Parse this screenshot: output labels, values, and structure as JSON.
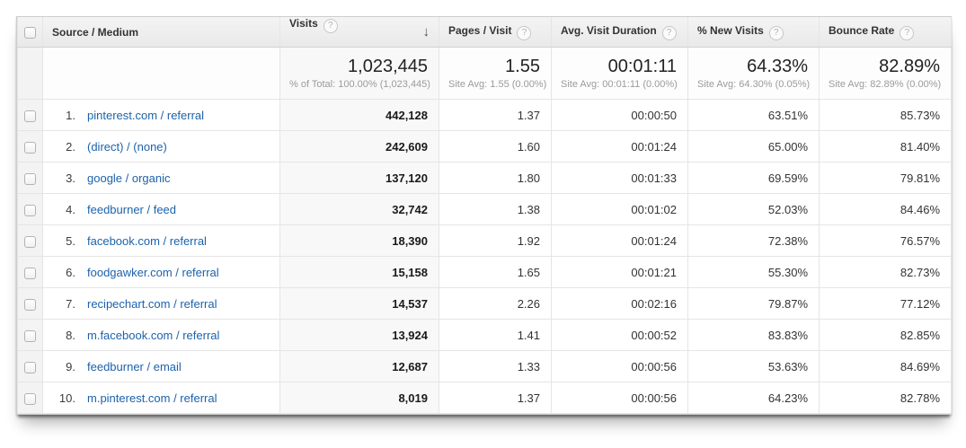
{
  "icons": {
    "help": "?",
    "sort_desc": "↓"
  },
  "colors": {
    "link_blue": "#1c62ab",
    "header_bg": "#ededed",
    "sorted_column_bg": "#f8f8f8",
    "checkbox_column_bg": "#f3f3f3",
    "border": "#e5e5e5",
    "subtext_gray": "#9b9b9b"
  },
  "table": {
    "columns": [
      {
        "label": "Source / Medium"
      },
      {
        "label": "Visits"
      },
      {
        "label": "Pages / Visit"
      },
      {
        "label": "Avg. Visit Duration"
      },
      {
        "label": "% New Visits"
      },
      {
        "label": "Bounce Rate"
      }
    ],
    "summary": {
      "visits": {
        "value": "1,023,445",
        "sub": "% of Total: 100.00% (1,023,445)"
      },
      "pages": {
        "value": "1.55",
        "sub": "Site Avg: 1.55 (0.00%)"
      },
      "duration": {
        "value": "00:01:11",
        "sub": "Site Avg: 00:01:11 (0.00%)"
      },
      "new_visits": {
        "value": "64.33%",
        "sub": "Site Avg: 64.30% (0.05%)"
      },
      "bounce": {
        "value": "82.89%",
        "sub": "Site Avg: 82.89% (0.00%)"
      }
    },
    "rows": [
      {
        "rank": "1.",
        "source": "pinterest.com / referral",
        "visits": "442,128",
        "pages": "1.37",
        "duration": "00:00:50",
        "new_visits": "63.51%",
        "bounce": "85.73%"
      },
      {
        "rank": "2.",
        "source": "(direct) / (none)",
        "visits": "242,609",
        "pages": "1.60",
        "duration": "00:01:24",
        "new_visits": "65.00%",
        "bounce": "81.40%"
      },
      {
        "rank": "3.",
        "source": "google / organic",
        "visits": "137,120",
        "pages": "1.80",
        "duration": "00:01:33",
        "new_visits": "69.59%",
        "bounce": "79.81%"
      },
      {
        "rank": "4.",
        "source": "feedburner / feed",
        "visits": "32,742",
        "pages": "1.38",
        "duration": "00:01:02",
        "new_visits": "52.03%",
        "bounce": "84.46%"
      },
      {
        "rank": "5.",
        "source": "facebook.com / referral",
        "visits": "18,390",
        "pages": "1.92",
        "duration": "00:01:24",
        "new_visits": "72.38%",
        "bounce": "76.57%"
      },
      {
        "rank": "6.",
        "source": "foodgawker.com / referral",
        "visits": "15,158",
        "pages": "1.65",
        "duration": "00:01:21",
        "new_visits": "55.30%",
        "bounce": "82.73%"
      },
      {
        "rank": "7.",
        "source": "recipechart.com / referral",
        "visits": "14,537",
        "pages": "2.26",
        "duration": "00:02:16",
        "new_visits": "79.87%",
        "bounce": "77.12%"
      },
      {
        "rank": "8.",
        "source": "m.facebook.com / referral",
        "visits": "13,924",
        "pages": "1.41",
        "duration": "00:00:52",
        "new_visits": "83.83%",
        "bounce": "82.85%"
      },
      {
        "rank": "9.",
        "source": "feedburner / email",
        "visits": "12,687",
        "pages": "1.33",
        "duration": "00:00:56",
        "new_visits": "53.63%",
        "bounce": "84.69%"
      },
      {
        "rank": "10.",
        "source": "m.pinterest.com / referral",
        "visits": "8,019",
        "pages": "1.37",
        "duration": "00:00:56",
        "new_visits": "64.23%",
        "bounce": "82.78%"
      }
    ]
  }
}
